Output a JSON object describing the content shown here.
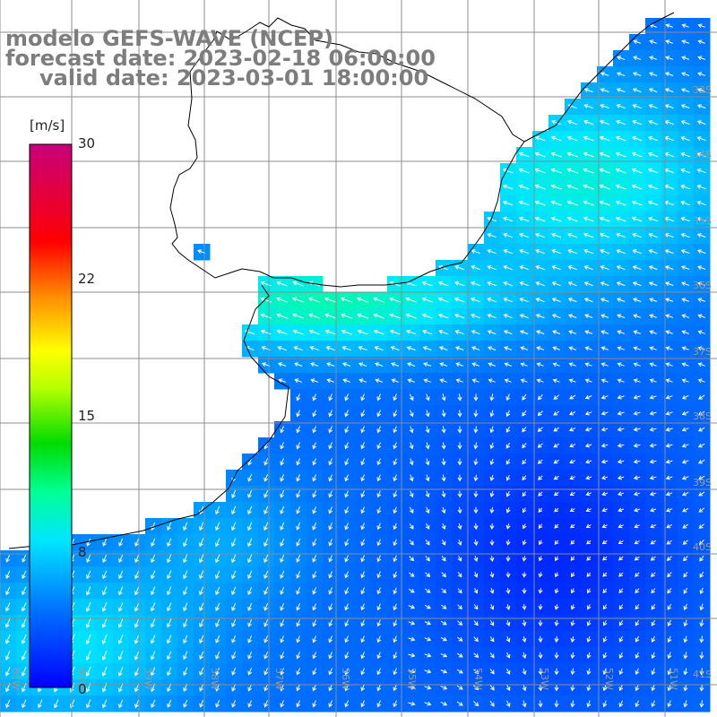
{
  "title": {
    "line1": "modelo GEFS-WAVE (NCEP)",
    "line2": "forecast date: 2023-02-18 06:00:00",
    "line3": "valid date: 2023-03-01 18:00:00"
  },
  "colorbar": {
    "unit": "[m/s]",
    "ticks": [
      "30",
      "22",
      "15",
      "8",
      "0"
    ],
    "tick_values": [
      30,
      22,
      15,
      8,
      0
    ],
    "range": [
      0,
      30
    ]
  },
  "lat_labels": [
    "33S",
    "34S",
    "35S",
    "36S",
    "37S",
    "38S",
    "39S",
    "40S",
    "41S"
  ],
  "lon_labels": [
    "61W",
    "60W",
    "59W",
    "58W",
    "57W",
    "56W",
    "55W",
    "54W",
    "53W",
    "52W",
    "51W"
  ],
  "colors": {
    "land": "#ffffff",
    "grid": "#8c8c8c",
    "coastline": "#000000",
    "title_text": "#7d7d7d",
    "arrows": "#ffffff"
  }
}
